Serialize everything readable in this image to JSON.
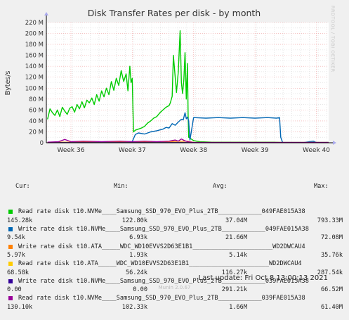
{
  "chart_data": {
    "type": "line",
    "title": "Disk Transfer Rates per disk - by month",
    "ylabel": "Bytes/s",
    "xlabel": "",
    "y_ticks": [
      "0",
      "20 M",
      "40 M",
      "60 M",
      "80 M",
      "100 M",
      "120 M",
      "140 M",
      "160 M",
      "180 M",
      "200 M",
      "220 M"
    ],
    "ylim": [
      0,
      220
    ],
    "y_unit": "M",
    "x_ticks": [
      "Week 36",
      "Week 37",
      "Week 38",
      "Week 39",
      "Week 40"
    ],
    "xlim": [
      35.6,
      40.2
    ],
    "x_tick_values": [
      36,
      37,
      38,
      39,
      40
    ],
    "grid": true,
    "series": [
      {
        "name": "Read rate disk t10.NVMe____Samsung_SSD_970_EVO_Plus_2TB____________049FAE015A38",
        "color": "#00cc00",
        "x": [
          35.62,
          35.66,
          35.7,
          35.74,
          35.78,
          35.82,
          35.86,
          35.9,
          35.94,
          35.98,
          36.02,
          36.06,
          36.1,
          36.14,
          36.18,
          36.22,
          36.26,
          36.3,
          36.34,
          36.38,
          36.42,
          36.46,
          36.5,
          36.54,
          36.58,
          36.62,
          36.66,
          36.7,
          36.74,
          36.78,
          36.82,
          36.86,
          36.9,
          36.93,
          36.96,
          36.98,
          37.0,
          37.02,
          37.05,
          37.1,
          37.15,
          37.2,
          37.25,
          37.3,
          37.35,
          37.4,
          37.45,
          37.5,
          37.55,
          37.6,
          37.62,
          37.65,
          37.67,
          37.7,
          37.72,
          37.75,
          37.78,
          37.8,
          37.82,
          37.84,
          37.86,
          37.88,
          37.9,
          37.91,
          37.92,
          38.0,
          38.1,
          38.3,
          38.6,
          38.9,
          39.1,
          39.3,
          39.45,
          39.6,
          40.0,
          40.2
        ],
        "y": [
          43,
          62,
          55,
          50,
          60,
          48,
          65,
          58,
          52,
          63,
          66,
          56,
          70,
          62,
          75,
          64,
          78,
          73,
          82,
          70,
          88,
          76,
          95,
          84,
          100,
          88,
          112,
          96,
          118,
          105,
          132,
          112,
          126,
          95,
          140,
          110,
          118,
          20,
          23,
          25,
          27,
          30,
          36,
          40,
          45,
          48,
          55,
          60,
          65,
          68,
          73,
          85,
          160,
          120,
          92,
          130,
          205,
          110,
          90,
          115,
          165,
          80,
          145,
          50,
          10,
          4,
          2,
          1,
          1,
          1,
          1,
          1,
          0.5,
          0.5,
          0.5,
          0.5
        ]
      },
      {
        "name": "Write rate disk t10.NVMe____Samsung_SSD_970_EVO_Plus_2TB____________049FAE015A38",
        "color": "#0066b3",
        "x": [
          35.62,
          35.8,
          36.0,
          36.2,
          36.4,
          36.6,
          36.8,
          37.0,
          37.05,
          37.1,
          37.2,
          37.3,
          37.4,
          37.5,
          37.55,
          37.6,
          37.65,
          37.7,
          37.75,
          37.8,
          37.83,
          37.86,
          37.88,
          37.9,
          37.92,
          37.94,
          38.0,
          38.2,
          38.4,
          38.6,
          38.8,
          39.0,
          39.2,
          39.35,
          39.4,
          39.42,
          39.45,
          39.6,
          39.8,
          39.95,
          40.0,
          40.2
        ],
        "y": [
          1,
          1,
          1,
          1,
          1,
          2,
          2,
          2,
          15,
          18,
          16,
          20,
          22,
          25,
          28,
          27,
          35,
          32,
          38,
          43,
          42,
          55,
          44,
          47,
          40,
          5,
          46,
          45,
          46,
          45,
          46,
          45,
          46,
          45,
          46,
          10,
          0.5,
          0.5,
          0.5,
          3,
          0.5,
          0.5
        ]
      },
      {
        "name": "Write rate disk t10.ATA_____WDC_WD10EVVS2D63E1B1______________________WD2DWCAU4",
        "color": "#ff8000",
        "x": [
          35.62,
          36.0,
          36.5,
          37.0,
          37.5,
          37.9,
          38.0,
          39.0,
          40.2
        ],
        "y": [
          1,
          1,
          1,
          1,
          2,
          3,
          0.5,
          0.5,
          0.5
        ]
      },
      {
        "name": "Read rate disk t10.ATA_____WDC_WD10EVVS2D63E1B1______________________WD2DWCAU4",
        "color": "#ffcc00",
        "x": [
          35.62,
          36.0,
          37.0,
          38.0,
          39.0,
          40.2
        ],
        "y": [
          0.2,
          0.2,
          0.2,
          0.2,
          0.2,
          0.2
        ]
      },
      {
        "name": "Write rate disk t10.NVMe____Samsung_SSD_970_EVO_Plus_2TB____________039FAE015A38",
        "color": "#330099",
        "x": [
          35.62,
          36.0,
          37.0,
          38.0,
          39.0,
          40.2
        ],
        "y": [
          0.3,
          0.3,
          0.3,
          0.3,
          0.3,
          0.3
        ]
      },
      {
        "name": "Read rate disk t10.NVMe____Samsung_SSD_970_EVO_Plus_2TB____________039FAE015A38",
        "color": "#990099",
        "x": [
          35.62,
          35.8,
          35.9,
          36.0,
          36.2,
          36.5,
          36.8,
          37.0,
          37.2,
          37.4,
          37.6,
          37.7,
          37.75,
          37.8,
          37.85,
          37.9,
          38.0,
          38.5,
          39.0,
          40.2
        ],
        "y": [
          1,
          2,
          6,
          2,
          3,
          2,
          3,
          2,
          3,
          2,
          3,
          5,
          3,
          7,
          4,
          2,
          0.5,
          0.5,
          0.5,
          0.5
        ]
      }
    ]
  },
  "legend": {
    "headers": {
      "cur": "Cur:",
      "min": "Min:",
      "avg": "Avg:",
      "max": "Max:"
    },
    "rows": [
      {
        "label": "Read rate disk t10.NVMe____Samsung_SSD_970_EVO_Plus_2TB____________049FAE015A38",
        "color": "#00cc00",
        "cur": "145.28k",
        "min": "122.80k",
        "avg": "37.04M",
        "max": "793.33M"
      },
      {
        "label": "Write rate disk t10.NVMe____Samsung_SSD_970_EVO_Plus_2TB____________049FAE015A38",
        "color": "#0066b3",
        "cur": "9.54k",
        "min": "6.93k",
        "avg": "21.66M",
        "max": "72.08M"
      },
      {
        "label": "Write rate disk t10.ATA_____WDC_WD10EVVS2D63E1B1______________________WD2DWCAU4",
        "color": "#ff8000",
        "cur": "5.97k",
        "min": "1.93k",
        "avg": "5.14k",
        "max": "35.76k"
      },
      {
        "label": "Read rate disk t10.ATA_____WDC_WD10EVVS2D63E1B1______________________WD2DWCAU4",
        "color": "#ffcc00",
        "cur": "68.58k",
        "min": "56.24k",
        "avg": "116.27k",
        "max": "287.54k"
      },
      {
        "label": "Write rate disk t10.NVMe____Samsung_SSD_970_EVO_Plus_2TB____________039FAE015A38",
        "color": "#330099",
        "cur": "0.00",
        "min": "0.00",
        "avg": "291.21k",
        "max": "66.52M"
      },
      {
        "label": "Read rate disk t10.NVMe____Samsung_SSD_970_EVO_Plus_2TB____________039FAE015A38",
        "color": "#990099",
        "cur": "130.10k",
        "min": "102.33k",
        "avg": "1.66M",
        "max": "61.40M"
      }
    ]
  },
  "footer": {
    "last_update": "Last update: Fri Oct  8 13:00:13 2021",
    "munin": "Munin 2.0.67"
  },
  "side_label": "RRDTOOL / TOBI OETIKER"
}
